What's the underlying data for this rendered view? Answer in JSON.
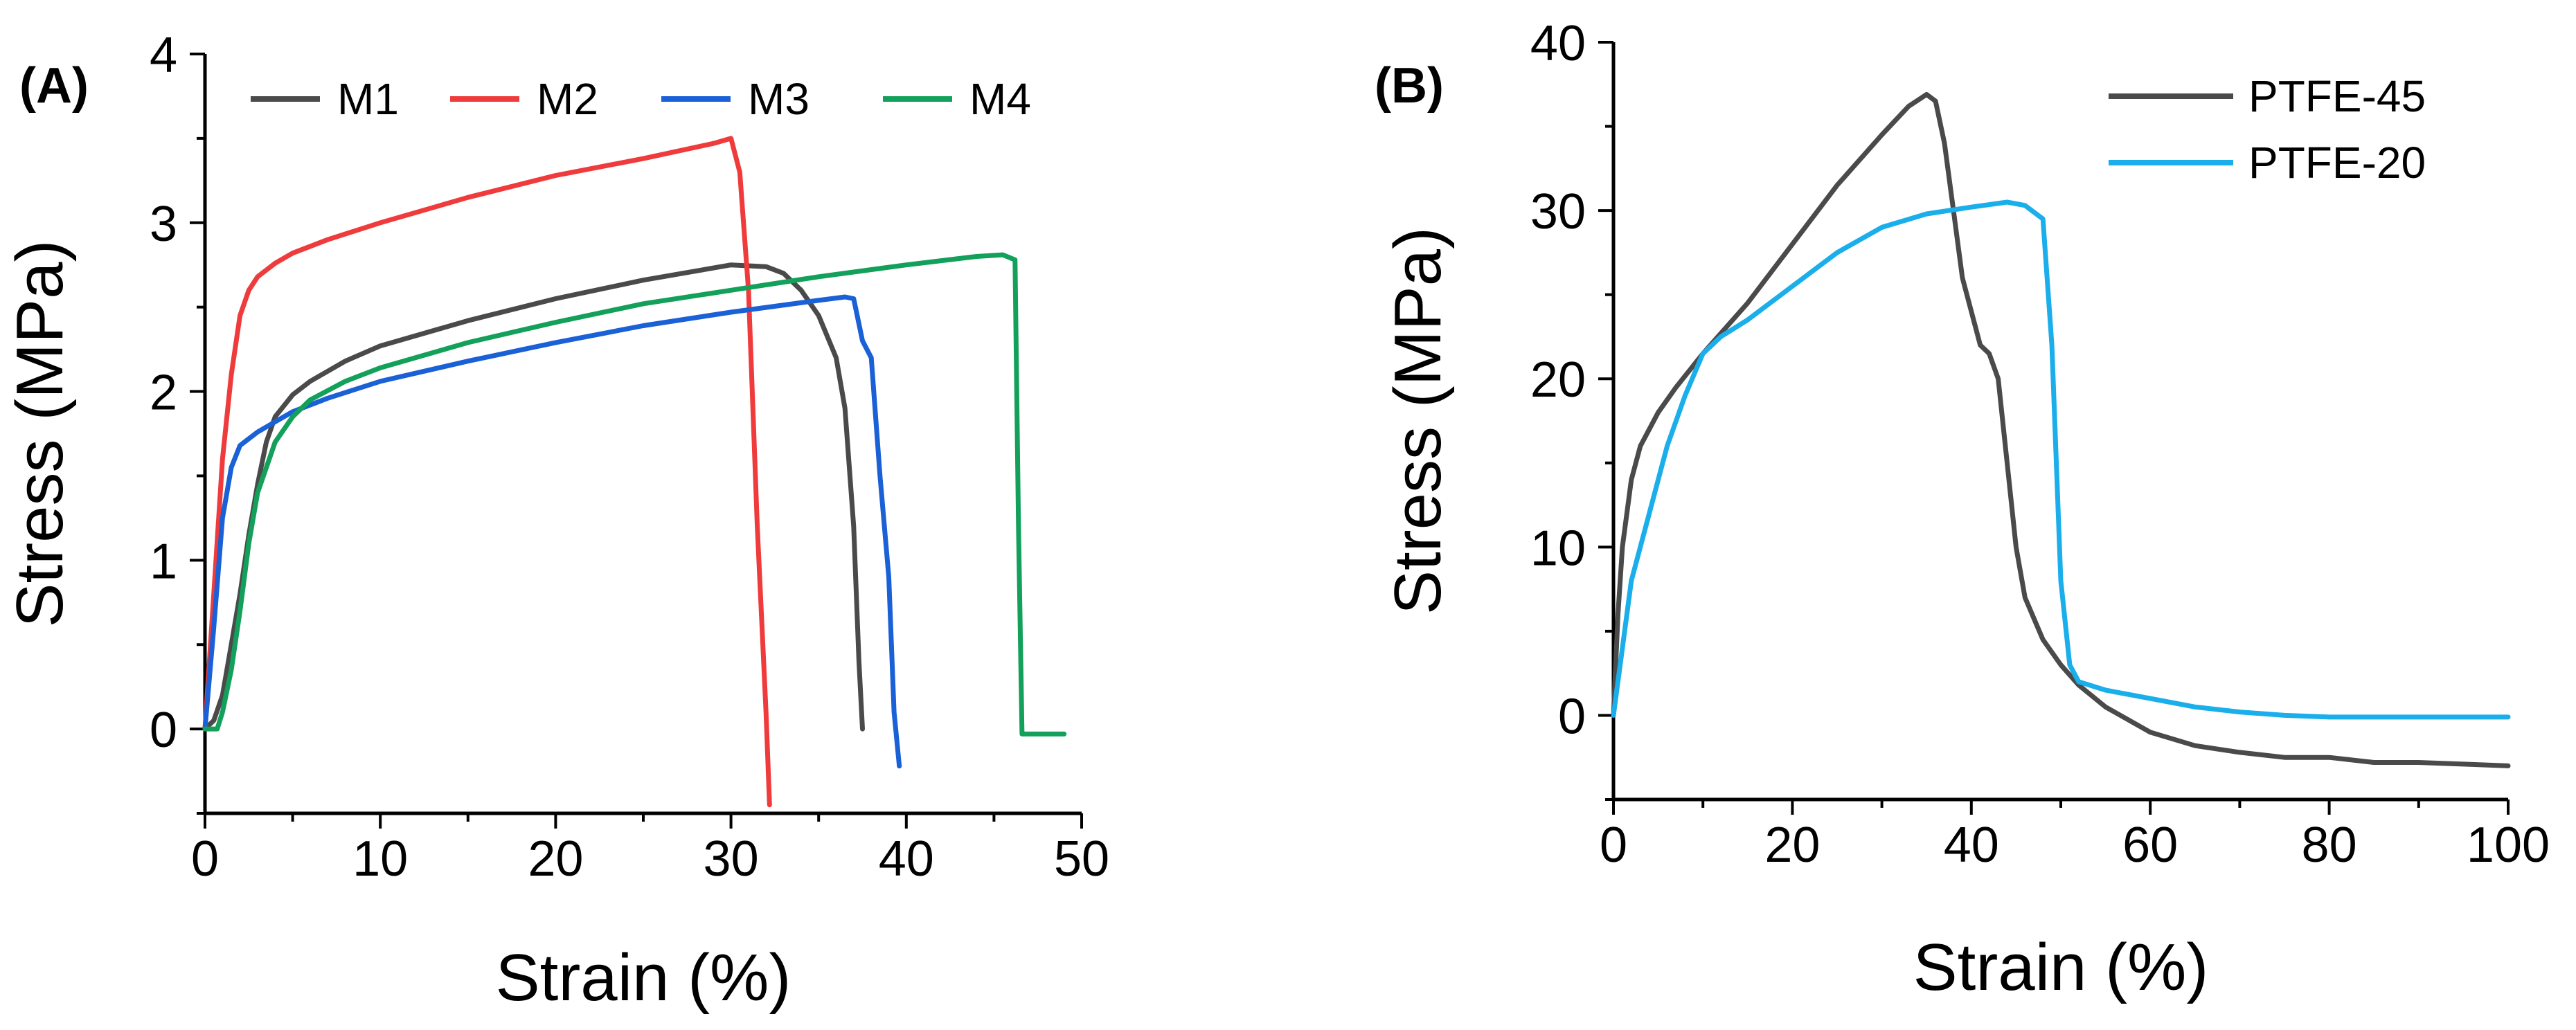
{
  "chart_data": [
    {
      "panel_label": "(A)",
      "type": "line",
      "xlabel": "Strain (%)",
      "ylabel": "Stress (MPa)",
      "xlim": [
        0,
        50
      ],
      "ylim": [
        -0.5,
        4
      ],
      "xticks": [
        0,
        10,
        20,
        30,
        40,
        50
      ],
      "yticks": [
        0,
        1,
        2,
        3,
        4
      ],
      "legend_position": "top",
      "series": [
        {
          "name": "M1",
          "color": "#4a4a4a",
          "x": [
            0,
            0.5,
            1,
            1.5,
            2,
            2.5,
            3,
            3.5,
            4,
            5,
            6,
            8,
            10,
            15,
            20,
            25,
            30,
            32,
            33,
            34,
            35,
            36,
            36.5,
            37,
            37.3,
            37.5
          ],
          "y": [
            0,
            0.05,
            0.2,
            0.5,
            0.8,
            1.15,
            1.45,
            1.7,
            1.85,
            1.98,
            2.06,
            2.18,
            2.27,
            2.42,
            2.55,
            2.66,
            2.75,
            2.74,
            2.7,
            2.6,
            2.45,
            2.2,
            1.9,
            1.2,
            0.4,
            0
          ]
        },
        {
          "name": "M2",
          "color": "#ef3b3b",
          "x": [
            0,
            0.5,
            1,
            1.5,
            2,
            2.5,
            3,
            4,
            5,
            7,
            10,
            15,
            20,
            25,
            29,
            30,
            30.5,
            31,
            31.5,
            32,
            32.2
          ],
          "y": [
            0,
            0.8,
            1.6,
            2.1,
            2.45,
            2.6,
            2.68,
            2.76,
            2.82,
            2.9,
            3.0,
            3.15,
            3.28,
            3.38,
            3.47,
            3.5,
            3.3,
            2.6,
            1.2,
            0.1,
            -0.45
          ]
        },
        {
          "name": "M3",
          "color": "#1a60d6",
          "x": [
            0,
            0.5,
            1,
            1.5,
            2,
            2.5,
            3,
            4,
            5,
            7,
            10,
            15,
            20,
            25,
            30,
            35,
            36.5,
            37,
            37.5,
            38,
            38.5,
            39,
            39.3,
            39.6
          ],
          "y": [
            0,
            0.6,
            1.25,
            1.55,
            1.68,
            1.72,
            1.76,
            1.82,
            1.88,
            1.96,
            2.06,
            2.18,
            2.29,
            2.39,
            2.47,
            2.54,
            2.56,
            2.55,
            2.3,
            2.2,
            1.5,
            0.9,
            0.1,
            -0.22
          ]
        },
        {
          "name": "M4",
          "color": "#12a05a",
          "x": [
            0,
            0.7,
            1,
            1.5,
            2,
            2.5,
            3,
            4,
            5,
            6,
            8,
            10,
            15,
            20,
            25,
            30,
            35,
            40,
            44,
            45.5,
            46.2,
            46.4,
            46.6,
            47,
            48,
            49
          ],
          "y": [
            0,
            0,
            0.1,
            0.35,
            0.7,
            1.1,
            1.4,
            1.7,
            1.85,
            1.95,
            2.06,
            2.14,
            2.29,
            2.41,
            2.52,
            2.6,
            2.68,
            2.75,
            2.8,
            2.81,
            2.78,
            1.2,
            -0.03,
            -0.03,
            -0.03,
            -0.03
          ]
        }
      ]
    },
    {
      "panel_label": "(B)",
      "type": "line",
      "xlabel": "Strain (%)",
      "ylabel": "Stress (MPa)",
      "xlim": [
        0,
        100
      ],
      "ylim": [
        -5,
        40
      ],
      "xticks": [
        0,
        20,
        40,
        60,
        80,
        100
      ],
      "yticks": [
        0,
        10,
        20,
        30,
        40
      ],
      "legend_position": "top-right",
      "series": [
        {
          "name": "PTFE-45",
          "color": "#4a4a4a",
          "x": [
            0,
            0.5,
            1,
            2,
            3,
            5,
            7,
            10,
            15,
            20,
            25,
            30,
            33,
            35,
            36,
            37,
            38,
            39,
            40,
            41,
            42,
            43,
            44,
            45,
            46,
            48,
            50,
            52,
            55,
            60,
            65,
            70,
            75,
            80,
            85,
            90,
            95,
            100
          ],
          "y": [
            0,
            6,
            10,
            14,
            16,
            18,
            19.5,
            21.5,
            24.5,
            28,
            31.5,
            34.5,
            36.2,
            36.9,
            36.5,
            34,
            30,
            26,
            24,
            22,
            21.5,
            20,
            15,
            10,
            7,
            4.5,
            3,
            1.8,
            0.5,
            -1,
            -1.8,
            -2.2,
            -2.5,
            -2.5,
            -2.8,
            -2.8,
            -2.9,
            -3.0
          ]
        },
        {
          "name": "PTFE-20",
          "color": "#1aaeea",
          "x": [
            0,
            1,
            2,
            4,
            6,
            8,
            10,
            12,
            15,
            20,
            25,
            30,
            35,
            40,
            44,
            46,
            48,
            49,
            50,
            51,
            52,
            55,
            60,
            65,
            70,
            75,
            80,
            90,
            100
          ],
          "y": [
            0,
            4,
            8,
            12,
            16,
            19,
            21.5,
            22.5,
            23.5,
            25.5,
            27.5,
            29,
            29.8,
            30.2,
            30.5,
            30.3,
            29.5,
            22,
            8,
            3,
            2,
            1.5,
            1,
            0.5,
            0.2,
            0,
            -0.1,
            -0.1,
            -0.1
          ]
        }
      ]
    }
  ]
}
